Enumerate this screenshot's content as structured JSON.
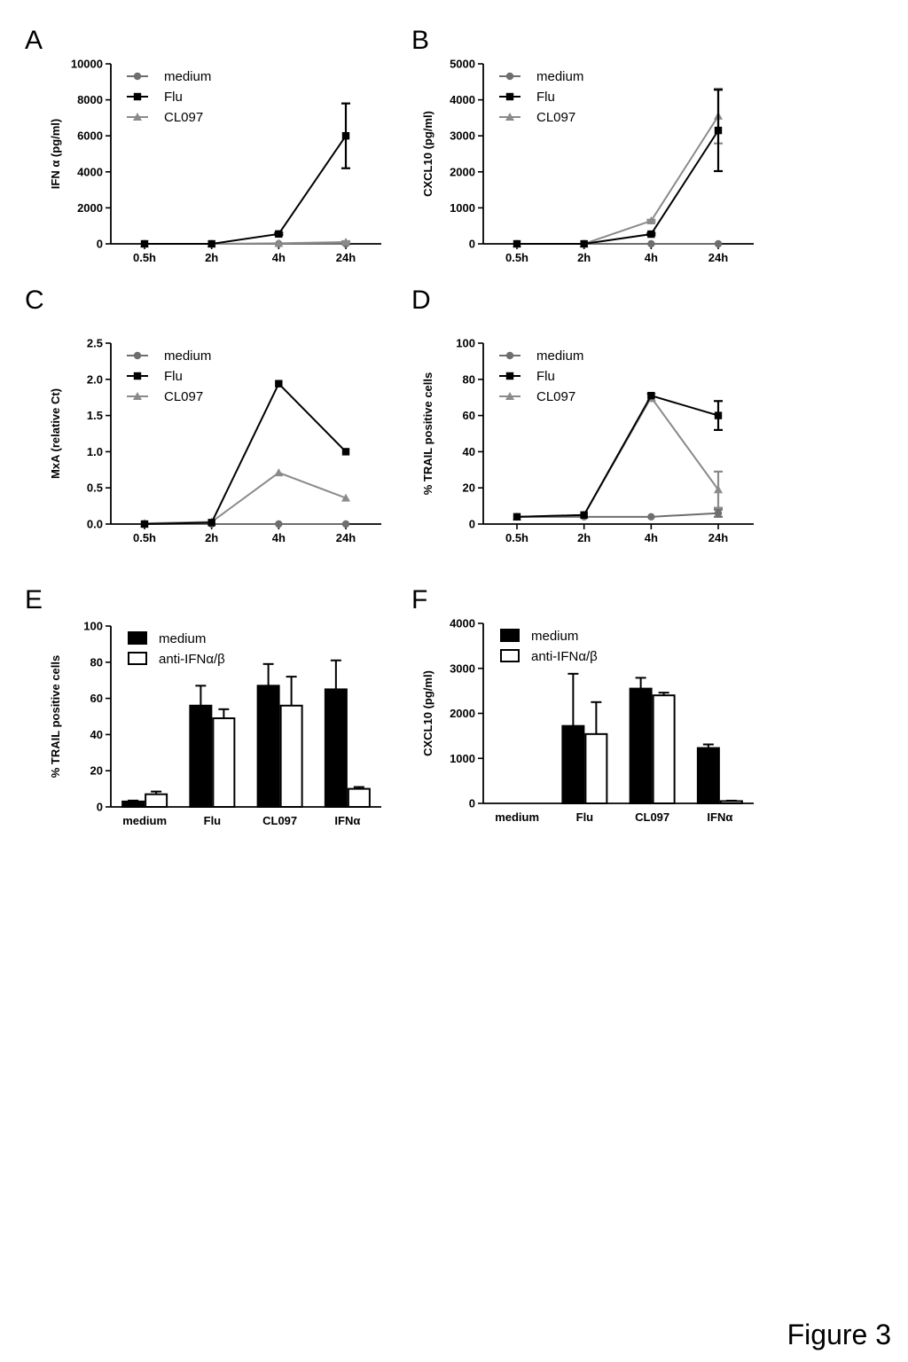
{
  "figure_label": "Figure 3",
  "colors": {
    "medium": "#6e6e6e",
    "Flu": "#000000",
    "CL097": "#8a8a8a"
  },
  "chart_data": [
    {
      "id": "A",
      "panel": "A",
      "type": "line",
      "ylabel": "IFN α  (pg/ml)",
      "categories": [
        "0.5h",
        "2h",
        "4h",
        "24h"
      ],
      "ylim": [
        0,
        10000
      ],
      "yticks": [
        0,
        2000,
        4000,
        6000,
        8000,
        10000
      ],
      "legend": "top-left",
      "series": [
        {
          "name": "medium",
          "marker": "circle",
          "values": [
            0,
            0,
            0,
            0
          ]
        },
        {
          "name": "Flu",
          "marker": "square",
          "values": [
            0,
            0,
            550,
            6000
          ],
          "errors": [
            0,
            0,
            60,
            1800
          ]
        },
        {
          "name": "CL097",
          "marker": "triangle",
          "values": [
            0,
            0,
            30,
            100
          ],
          "errors": [
            0,
            0,
            0,
            50
          ]
        }
      ]
    },
    {
      "id": "B",
      "panel": "B",
      "type": "line",
      "ylabel": "CXCL10 (pg/ml)",
      "categories": [
        "0.5h",
        "2h",
        "4h",
        "24h"
      ],
      "ylim": [
        0,
        5000
      ],
      "yticks": [
        0,
        1000,
        2000,
        3000,
        4000,
        5000
      ],
      "legend": "top-left",
      "series": [
        {
          "name": "medium",
          "marker": "circle",
          "values": [
            0,
            0,
            0,
            0
          ]
        },
        {
          "name": "Flu",
          "marker": "square",
          "values": [
            0,
            0,
            270,
            3150
          ],
          "errors": [
            0,
            0,
            30,
            1130
          ]
        },
        {
          "name": "CL097",
          "marker": "triangle",
          "values": [
            0,
            0,
            640,
            3550
          ],
          "errors": [
            0,
            0,
            30,
            760
          ]
        }
      ]
    },
    {
      "id": "C",
      "panel": "C",
      "type": "line",
      "ylabel": "MxA (relative Ct)",
      "categories": [
        "0.5h",
        "2h",
        "4h",
        "24h"
      ],
      "ylim": [
        0,
        2.5
      ],
      "yticks": [
        0.0,
        0.5,
        1.0,
        1.5,
        2.0,
        2.5
      ],
      "ytick_labels": [
        "0.0",
        "0.5",
        "1.0",
        "1.5",
        "2.0",
        "2.5"
      ],
      "legend": "top-left",
      "series": [
        {
          "name": "medium",
          "marker": "circle",
          "values": [
            0,
            0,
            0,
            0
          ]
        },
        {
          "name": "Flu",
          "marker": "square",
          "values": [
            0,
            0.02,
            1.94,
            1.0
          ]
        },
        {
          "name": "CL097",
          "marker": "triangle",
          "values": [
            0.01,
            0.03,
            0.71,
            0.36
          ]
        }
      ]
    },
    {
      "id": "D",
      "panel": "D",
      "type": "line",
      "ylabel": "% TRAIL positive cells",
      "categories": [
        "0.5h",
        "2h",
        "4h",
        "24h"
      ],
      "ylim": [
        0,
        100
      ],
      "yticks": [
        0,
        20,
        40,
        60,
        80,
        100
      ],
      "legend": "top-left",
      "series": [
        {
          "name": "medium",
          "marker": "circle",
          "values": [
            4,
            4,
            4,
            6
          ],
          "errors": [
            0,
            0,
            0,
            2
          ]
        },
        {
          "name": "Flu",
          "marker": "square",
          "values": [
            4,
            5,
            71,
            60
          ],
          "errors": [
            0,
            0,
            0,
            8
          ]
        },
        {
          "name": "CL097",
          "marker": "triangle",
          "values": [
            4,
            5,
            70,
            19
          ],
          "errors": [
            0,
            0,
            2,
            10
          ]
        }
      ]
    },
    {
      "id": "E",
      "panel": "E",
      "type": "bar",
      "ylabel": "% TRAIL positive cells",
      "categories": [
        "medium",
        "Flu",
        "CL097",
        "IFNα"
      ],
      "ylim": [
        0,
        100
      ],
      "yticks": [
        0,
        20,
        40,
        60,
        80,
        100
      ],
      "legend": "top-left",
      "series": [
        {
          "name": "medium",
          "fill": "black",
          "values": [
            3,
            56,
            67,
            65
          ],
          "errors": [
            0.5,
            11,
            12,
            16
          ]
        },
        {
          "name": "anti-IFNα/β",
          "fill": "white",
          "values": [
            7,
            49,
            56,
            10
          ],
          "errors": [
            1.5,
            5,
            16,
            1
          ]
        }
      ]
    },
    {
      "id": "F",
      "panel": "F",
      "type": "bar",
      "ylabel": "CXCL10 (pg/ml)",
      "categories": [
        "medium",
        "Flu",
        "CL097",
        "IFNα"
      ],
      "ylim": [
        0,
        4000
      ],
      "yticks": [
        0,
        1000,
        2000,
        3000,
        4000
      ],
      "legend": "top-left",
      "series": [
        {
          "name": "medium",
          "fill": "black",
          "values": [
            0,
            1720,
            2550,
            1230
          ],
          "errors": [
            0,
            1160,
            240,
            80
          ]
        },
        {
          "name": "anti-IFNα/β",
          "fill": "white",
          "values": [
            0,
            1540,
            2400,
            50
          ],
          "errors": [
            0,
            710,
            60,
            10
          ]
        }
      ]
    }
  ]
}
